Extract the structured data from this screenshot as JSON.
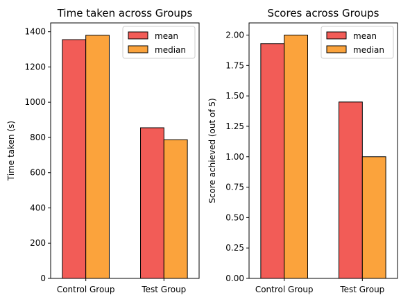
{
  "colors": {
    "mean": "#f25c57",
    "median": "#fba33c",
    "edge": "#000000"
  },
  "chart_data": [
    {
      "type": "bar",
      "title": "Time taken across Groups",
      "xlabel": "",
      "ylabel": "Time taken (s)",
      "categories": [
        "Control Group",
        "Test Group"
      ],
      "series": [
        {
          "name": "mean",
          "values": [
            1355,
            855
          ]
        },
        {
          "name": "median",
          "values": [
            1380,
            787
          ]
        }
      ],
      "ylim": [
        0,
        1450
      ],
      "yticks": [
        0,
        200,
        400,
        600,
        800,
        1000,
        1200,
        1400
      ],
      "ytick_labels": [
        "0",
        "200",
        "400",
        "600",
        "800",
        "1000",
        "1200",
        "1400"
      ],
      "legend": "top-right",
      "grid": false
    },
    {
      "type": "bar",
      "title": "Scores across Groups",
      "xlabel": "",
      "ylabel": "Score achieved (out of 5)",
      "categories": [
        "Control Group",
        "Test Group"
      ],
      "series": [
        {
          "name": "mean",
          "values": [
            1.93,
            1.45
          ]
        },
        {
          "name": "median",
          "values": [
            2.0,
            1.0
          ]
        }
      ],
      "ylim": [
        0,
        2.1
      ],
      "yticks": [
        0,
        0.25,
        0.5,
        0.75,
        1.0,
        1.25,
        1.5,
        1.75,
        2.0
      ],
      "ytick_labels": [
        "0.00",
        "0.25",
        "0.50",
        "0.75",
        "1.00",
        "1.25",
        "1.50",
        "1.75",
        "2.00"
      ],
      "legend": "top-right",
      "grid": false
    }
  ]
}
